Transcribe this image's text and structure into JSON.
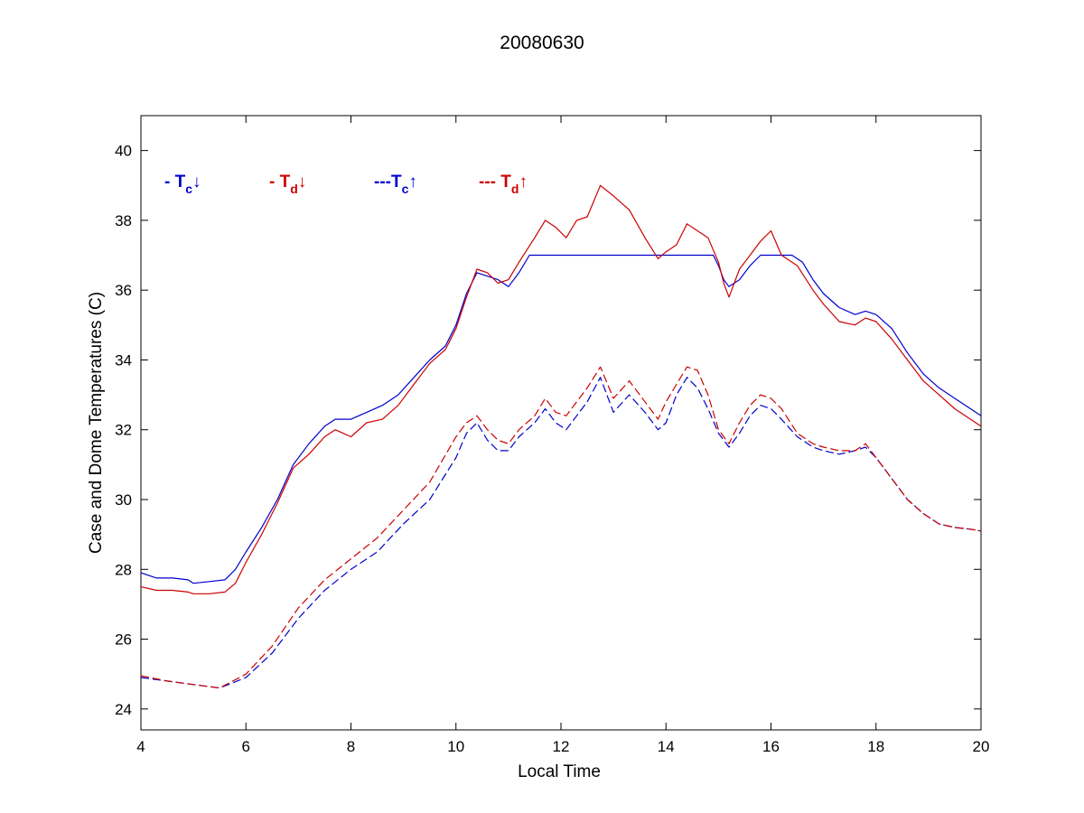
{
  "chart_data": {
    "type": "line",
    "title": "20080630",
    "xlabel": "Local Time",
    "ylabel": "Case and Dome Temperatures (C)",
    "xlim": [
      4,
      20
    ],
    "ylim": [
      23.4,
      41
    ],
    "x_ticks": [
      "4",
      "6",
      "8",
      "10",
      "12",
      "14",
      "16",
      "18",
      "20"
    ],
    "x_tick_values": [
      4,
      6,
      8,
      10,
      12,
      14,
      16,
      18,
      20
    ],
    "y_ticks": [
      "24",
      "26",
      "28",
      "30",
      "32",
      "34",
      "36",
      "38",
      "40"
    ],
    "y_tick_values": [
      24,
      26,
      28,
      30,
      32,
      34,
      36,
      38,
      40
    ],
    "grid": false,
    "legend_position": "top-left",
    "series": [
      {
        "name": "- Tc↓",
        "legend_prefix": "- T",
        "legend_sub": "c",
        "legend_arrow": "↓",
        "color": "#0000cc",
        "dash": "solid",
        "x": [
          4.0,
          4.3,
          4.6,
          4.9,
          5.0,
          5.3,
          5.6,
          5.8,
          6.0,
          6.3,
          6.6,
          6.9,
          7.2,
          7.5,
          7.7,
          8.0,
          8.3,
          8.6,
          8.9,
          9.2,
          9.5,
          9.8,
          10.0,
          10.2,
          10.4,
          10.6,
          10.8,
          11.0,
          11.2,
          11.4,
          12.0,
          13.0,
          14.0,
          14.9,
          15.0,
          15.1,
          15.2,
          15.4,
          15.6,
          15.8,
          16.0,
          16.4,
          16.6,
          16.8,
          17.0,
          17.3,
          17.6,
          17.8,
          18.0,
          18.3,
          18.6,
          18.9,
          19.2,
          19.5,
          19.8,
          20.0
        ],
        "y": [
          27.9,
          27.75,
          27.75,
          27.7,
          27.6,
          27.65,
          27.7,
          28.0,
          28.5,
          29.2,
          30.0,
          31.0,
          31.6,
          32.1,
          32.3,
          32.3,
          32.5,
          32.7,
          33.0,
          33.5,
          34.0,
          34.4,
          35.0,
          35.9,
          36.5,
          36.4,
          36.3,
          36.1,
          36.5,
          37.0,
          37.0,
          37.0,
          37.0,
          37.0,
          36.7,
          36.3,
          36.1,
          36.3,
          36.7,
          37.0,
          37.0,
          37.0,
          36.8,
          36.3,
          35.9,
          35.5,
          35.3,
          35.4,
          35.3,
          34.9,
          34.2,
          33.6,
          33.2,
          32.9,
          32.6,
          32.4
        ]
      },
      {
        "name": "- Td↓",
        "legend_prefix": "- T",
        "legend_sub": "d",
        "legend_arrow": "↓",
        "color": "#cc0000",
        "dash": "solid",
        "x": [
          4.0,
          4.3,
          4.6,
          4.9,
          5.0,
          5.3,
          5.6,
          5.8,
          6.0,
          6.3,
          6.6,
          6.9,
          7.2,
          7.5,
          7.7,
          8.0,
          8.3,
          8.6,
          8.9,
          9.2,
          9.5,
          9.8,
          10.0,
          10.2,
          10.4,
          10.6,
          10.8,
          11.0,
          11.2,
          11.5,
          11.7,
          11.9,
          12.1,
          12.3,
          12.5,
          12.75,
          13.0,
          13.3,
          13.6,
          13.85,
          14.0,
          14.2,
          14.4,
          14.6,
          14.8,
          15.0,
          15.1,
          15.2,
          15.4,
          15.6,
          15.8,
          16.0,
          16.2,
          16.5,
          16.8,
          17.0,
          17.3,
          17.6,
          17.8,
          18.0,
          18.3,
          18.6,
          18.9,
          19.2,
          19.5,
          19.8,
          20.0
        ],
        "y": [
          27.5,
          27.4,
          27.4,
          27.35,
          27.3,
          27.3,
          27.35,
          27.6,
          28.2,
          29.0,
          29.9,
          30.9,
          31.3,
          31.8,
          32.0,
          31.8,
          32.2,
          32.3,
          32.7,
          33.3,
          33.9,
          34.3,
          34.9,
          35.8,
          36.6,
          36.5,
          36.2,
          36.3,
          36.8,
          37.5,
          38.0,
          37.8,
          37.5,
          38.0,
          38.1,
          39.0,
          38.7,
          38.3,
          37.5,
          36.9,
          37.1,
          37.3,
          37.9,
          37.7,
          37.5,
          36.8,
          36.2,
          35.8,
          36.6,
          37.0,
          37.4,
          37.7,
          37.0,
          36.7,
          36.0,
          35.6,
          35.1,
          35.0,
          35.2,
          35.1,
          34.6,
          34.0,
          33.4,
          33.0,
          32.6,
          32.3,
          32.1
        ]
      },
      {
        "name": "---Tc↑",
        "legend_prefix": "---T",
        "legend_sub": "c",
        "legend_arrow": "↑",
        "color": "#0000cc",
        "dash": "dashed",
        "x": [
          4.0,
          4.5,
          5.0,
          5.5,
          6.0,
          6.5,
          7.0,
          7.5,
          8.0,
          8.5,
          9.0,
          9.5,
          10.0,
          10.2,
          10.4,
          10.6,
          10.8,
          11.0,
          11.2,
          11.5,
          11.7,
          11.9,
          12.1,
          12.3,
          12.5,
          12.75,
          13.0,
          13.3,
          13.6,
          13.85,
          14.0,
          14.2,
          14.4,
          14.6,
          14.8,
          15.0,
          15.2,
          15.4,
          15.6,
          15.8,
          16.0,
          16.2,
          16.5,
          16.8,
          17.0,
          17.3,
          17.6,
          17.8,
          18.0,
          18.3,
          18.6,
          18.9,
          19.2,
          19.5,
          19.8,
          20.0
        ],
        "y": [
          24.9,
          24.8,
          24.7,
          24.6,
          24.9,
          25.6,
          26.6,
          27.4,
          28.0,
          28.5,
          29.3,
          30.0,
          31.2,
          31.9,
          32.2,
          31.7,
          31.4,
          31.4,
          31.8,
          32.2,
          32.6,
          32.2,
          32.0,
          32.4,
          32.8,
          33.5,
          32.5,
          33.0,
          32.5,
          32.0,
          32.2,
          33.0,
          33.5,
          33.2,
          32.6,
          31.9,
          31.5,
          31.9,
          32.4,
          32.7,
          32.6,
          32.3,
          31.8,
          31.5,
          31.4,
          31.3,
          31.4,
          31.5,
          31.2,
          30.6,
          30.0,
          29.6,
          29.3,
          29.2,
          29.15,
          29.1
        ]
      },
      {
        "name": "--- Td↑",
        "legend_prefix": "--- T",
        "legend_sub": "d",
        "legend_arrow": "↑",
        "color": "#cc0000",
        "dash": "dashed",
        "x": [
          4.0,
          4.5,
          5.0,
          5.5,
          6.0,
          6.5,
          7.0,
          7.5,
          8.0,
          8.5,
          9.0,
          9.5,
          10.0,
          10.2,
          10.4,
          10.6,
          10.8,
          11.0,
          11.2,
          11.5,
          11.7,
          11.9,
          12.1,
          12.3,
          12.5,
          12.75,
          13.0,
          13.3,
          13.6,
          13.85,
          14.0,
          14.2,
          14.4,
          14.6,
          14.8,
          15.0,
          15.2,
          15.4,
          15.6,
          15.8,
          16.0,
          16.2,
          16.5,
          16.8,
          17.0,
          17.3,
          17.6,
          17.8,
          18.0,
          18.3,
          18.6,
          18.9,
          19.2,
          19.5,
          19.8,
          20.0
        ],
        "y": [
          24.95,
          24.8,
          24.7,
          24.6,
          25.0,
          25.8,
          26.9,
          27.7,
          28.3,
          28.9,
          29.7,
          30.5,
          31.8,
          32.2,
          32.4,
          32.0,
          31.7,
          31.6,
          32.0,
          32.4,
          32.9,
          32.5,
          32.4,
          32.8,
          33.2,
          33.8,
          32.9,
          33.4,
          32.8,
          32.3,
          32.8,
          33.3,
          33.8,
          33.7,
          33.0,
          32.0,
          31.6,
          32.2,
          32.7,
          33.0,
          32.9,
          32.6,
          31.9,
          31.6,
          31.5,
          31.4,
          31.4,
          31.6,
          31.2,
          30.6,
          30.0,
          29.6,
          29.3,
          29.2,
          29.15,
          29.1
        ]
      }
    ]
  }
}
